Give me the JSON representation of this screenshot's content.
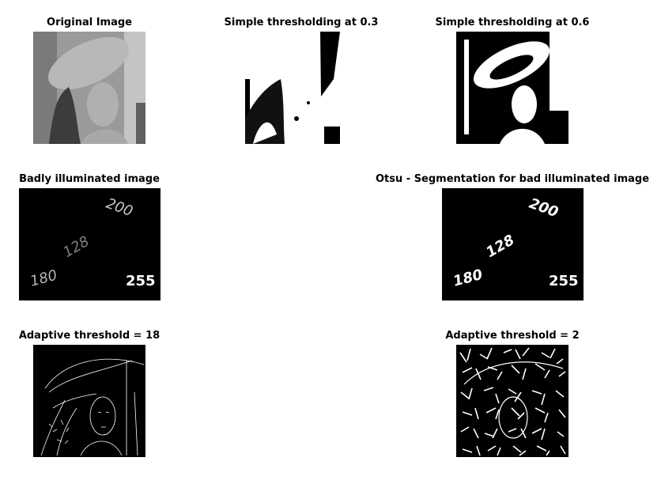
{
  "panels": {
    "original": {
      "title": "Original Image"
    },
    "thresh_03": {
      "title": "Simple thresholding at 0.3"
    },
    "thresh_06": {
      "title": "Simple thresholding at 0.6"
    },
    "badly_lit": {
      "title": "Badly illuminated image",
      "numbers": [
        "200",
        "128",
        "180",
        "255"
      ],
      "number_colors": [
        "#c8c8c8",
        "#808080",
        "#b4b4b4",
        "#ffffff"
      ]
    },
    "otsu": {
      "title": "Otsu - Segmentation for bad illuminated image",
      "numbers": [
        "200",
        "128",
        "180",
        "255"
      ]
    },
    "adaptive_18": {
      "title": "Adaptive threshold = 18"
    },
    "adaptive_2": {
      "title": "Adaptive threshold = 2"
    }
  },
  "colors": {
    "background": "#ffffff",
    "foreground": "#000000",
    "gray_light": "#bdbdbd",
    "gray_mid": "#8a8a8a",
    "gray_dark": "#3a3a3a"
  }
}
